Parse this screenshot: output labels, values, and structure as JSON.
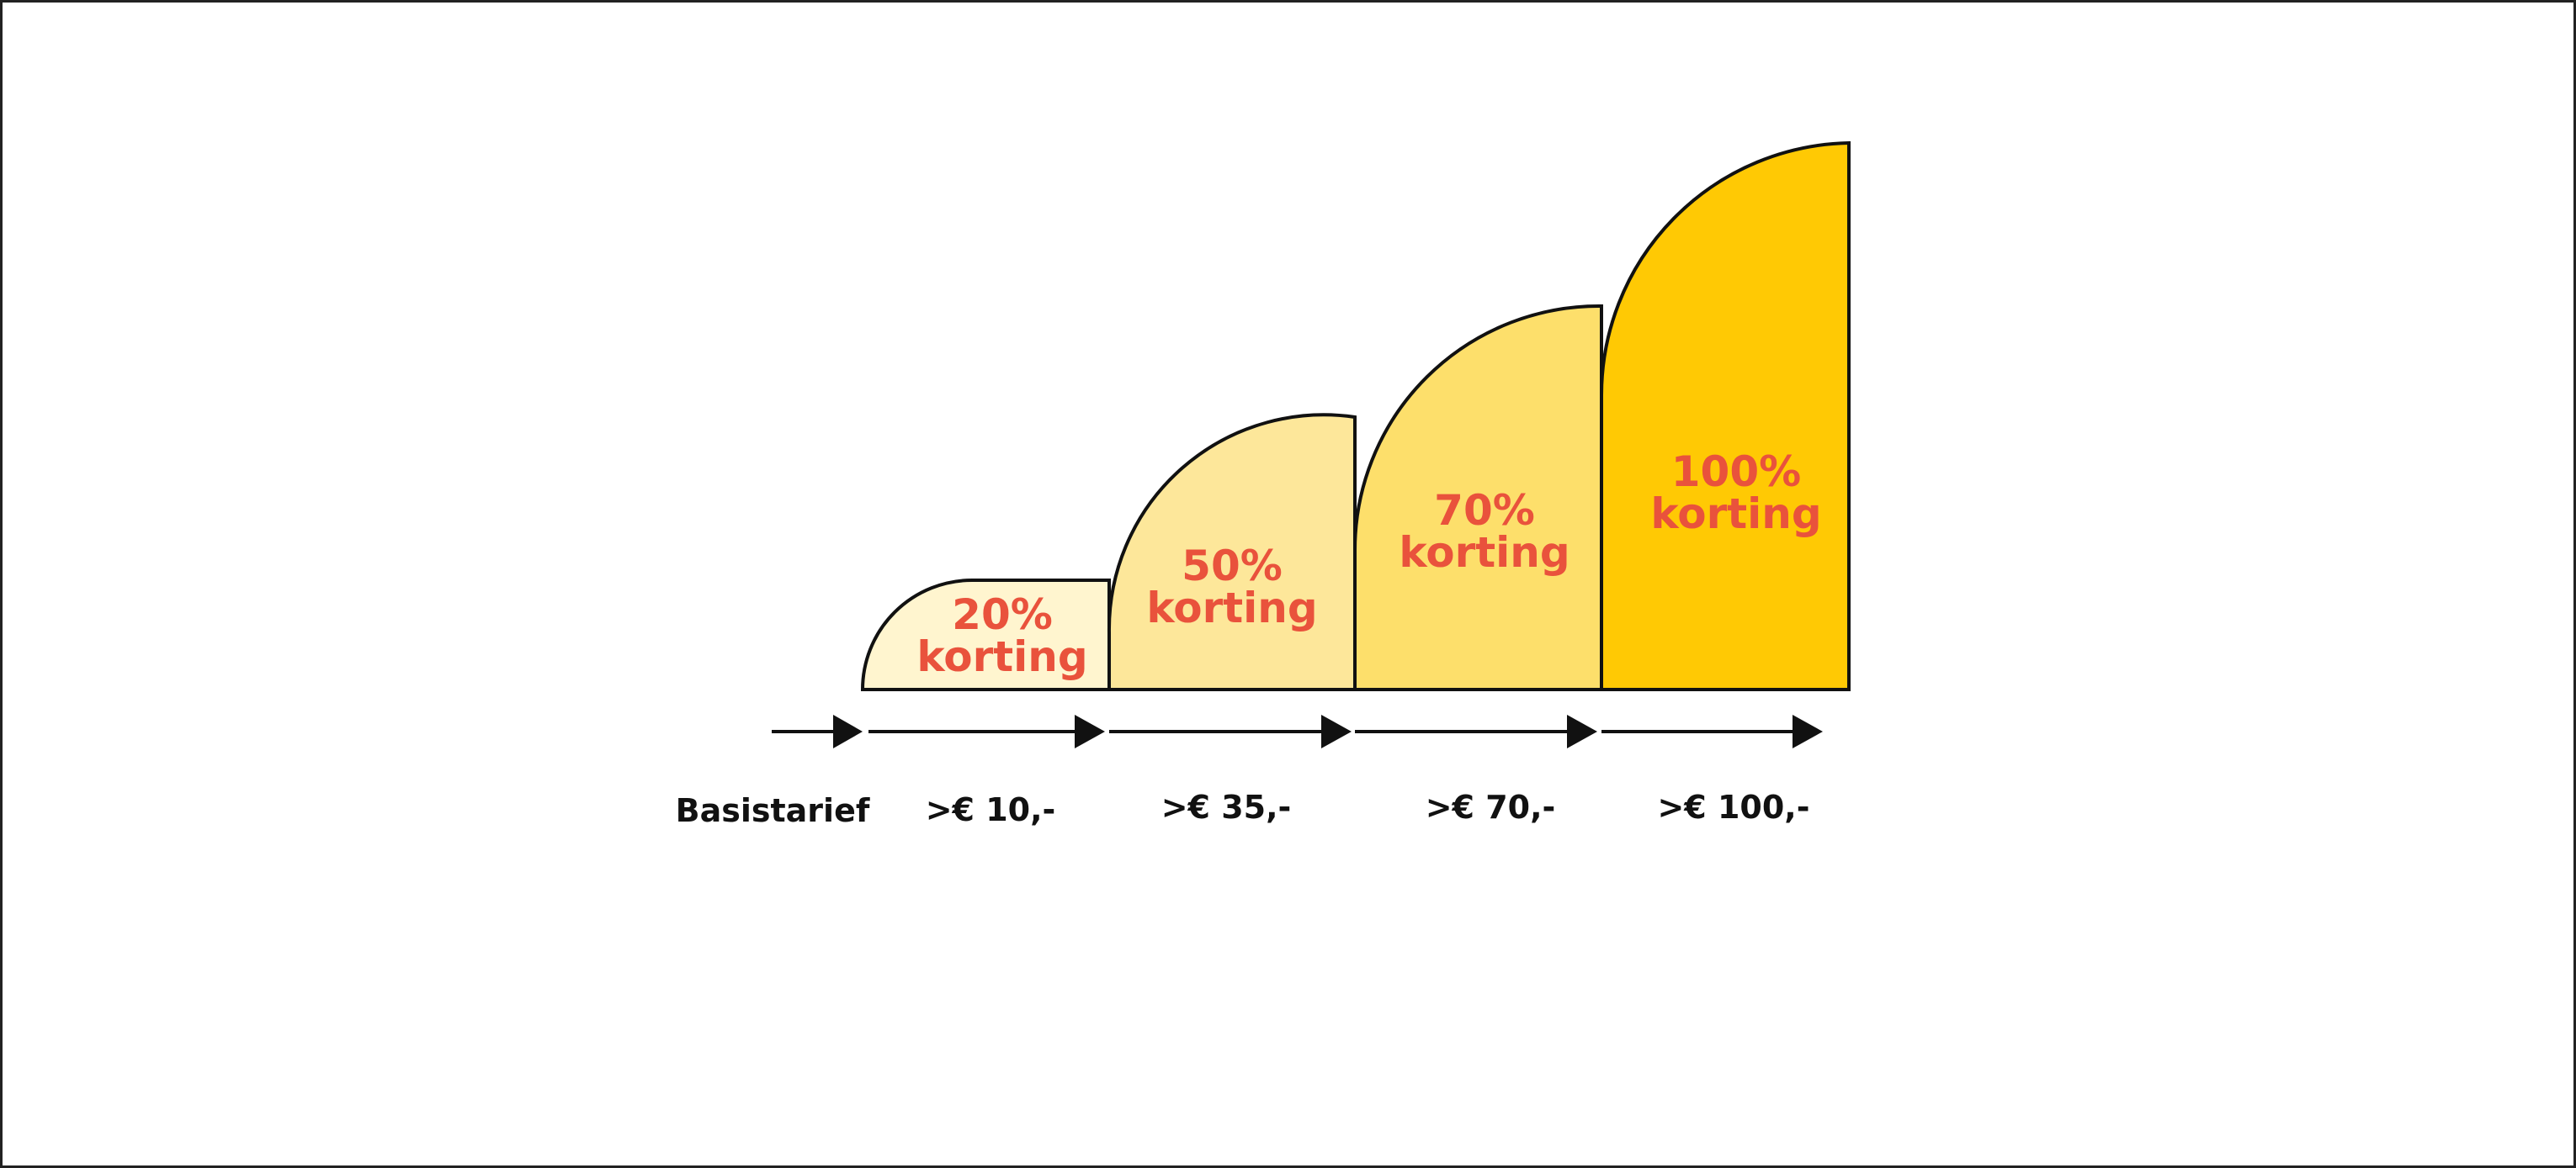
{
  "tiers": [
    {
      "pct": "20%",
      "word": "korting",
      "threshold": ">€ 10,-",
      "fill": "#FFF5CF"
    },
    {
      "pct": "50%",
      "word": "korting",
      "threshold": ">€ 35,-",
      "fill": "#FDE79A"
    },
    {
      "pct": "70%",
      "word": "korting",
      "threshold": ">€ 70,-",
      "fill": "#FDDF6B"
    },
    {
      "pct": "100%",
      "word": "korting",
      "threshold": ">€ 100,-",
      "fill": "#FFC904"
    }
  ],
  "base_label": "Basistarief",
  "colors": {
    "text_accent": "#E9523C",
    "outline": "#111111",
    "arrow": "#111111"
  }
}
